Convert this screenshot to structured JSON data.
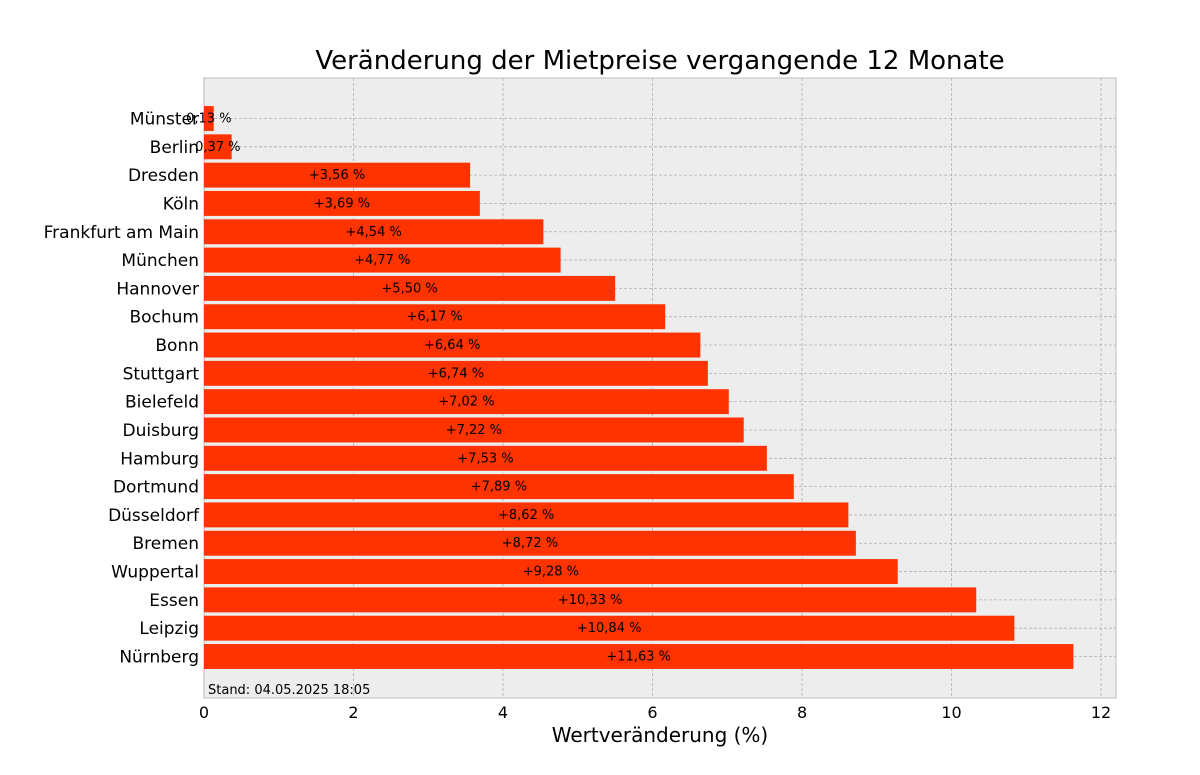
{
  "chart_data": {
    "type": "bar",
    "orientation": "horizontal",
    "title": "Veränderung der Mietpreise vergangende 12 Monate",
    "xlabel": "Wertveränderung (%)",
    "ylabel": "",
    "xlim": [
      0,
      12.2
    ],
    "xticks": [
      0,
      2,
      4,
      6,
      8,
      10,
      12
    ],
    "grid": true,
    "bar_color": "#ff3300",
    "background_color": "#ededed",
    "categories": [
      "Münster",
      "Berlin",
      "Dresden",
      "Köln",
      "Frankfurt am Main",
      "München",
      "Hannover",
      "Bochum",
      "Bonn",
      "Stuttgart",
      "Bielefeld",
      "Duisburg",
      "Hamburg",
      "Dortmund",
      "Düsseldorf",
      "Bremen",
      "Wuppertal",
      "Essen",
      "Leipzig",
      "Nürnberg"
    ],
    "values": [
      0.13,
      0.37,
      3.56,
      3.69,
      4.54,
      4.77,
      5.5,
      6.17,
      6.64,
      6.74,
      7.02,
      7.22,
      7.53,
      7.89,
      8.62,
      8.72,
      9.28,
      10.33,
      10.84,
      11.63
    ],
    "data_labels": [
      "0,13 %",
      "0,37 %",
      "+3,56 %",
      "+3,69 %",
      "+4,54 %",
      "+4,77 %",
      "+5,50 %",
      "+6,17 %",
      "+6,64 %",
      "+6,74 %",
      "+7,02 %",
      "+7,22 %",
      "+7,53 %",
      "+7,89 %",
      "+8,62 %",
      "+8,72 %",
      "+9,28 %",
      "+10,33 %",
      "+10,84 %",
      "+11,63 %"
    ],
    "annotation": "Stand: 04.05.2025 18:05"
  }
}
